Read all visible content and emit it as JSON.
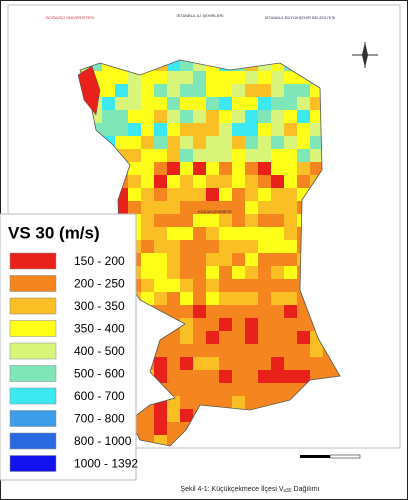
{
  "header": {
    "left": "BOĞAZİÇİ ÜNİVERSİTESİ",
    "center": "İSTANBUL İLİ ŞEHİRLERİ",
    "right": "İSTANBUL BÜYÜKŞEHİR BELEDİYESİ"
  },
  "map": {
    "district": "KÜÇÜKÇEKMECE"
  },
  "legend": {
    "title": "VS 30 (m/s)",
    "items": [
      {
        "label": "150 - 200",
        "color": "#e8221b"
      },
      {
        "label": "200 - 250",
        "color": "#f5861f"
      },
      {
        "label": "300 - 350",
        "color": "#fbbf26"
      },
      {
        "label": "350 - 400",
        "color": "#ffff1a"
      },
      {
        "label": "400 - 500",
        "color": "#d8f57a"
      },
      {
        "label": "500 - 600",
        "color": "#7fe6b8"
      },
      {
        "label": "600 - 700",
        "color": "#3ce8f2"
      },
      {
        "label": "700 - 800",
        "color": "#3d9de8"
      },
      {
        "label": "800 - 1000",
        "color": "#2a6ae0"
      },
      {
        "label": "1000 - 1392",
        "color": "#1212ee"
      }
    ]
  },
  "caption": {
    "text": "Şekil 4-1: Küçükçekmece İlçesi V",
    "sub": "s30",
    "suffix": " Dağılımı"
  }
}
